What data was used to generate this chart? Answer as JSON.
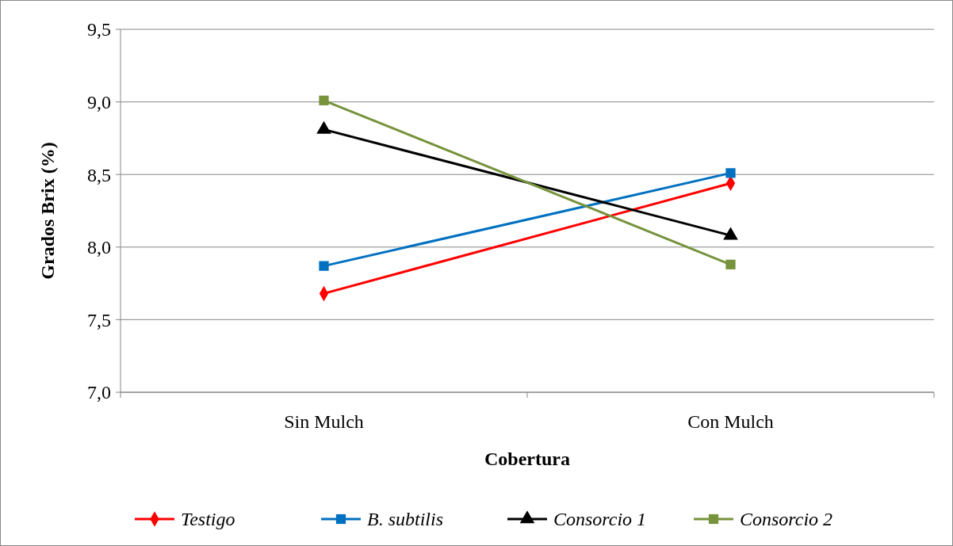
{
  "chart_data": {
    "type": "line",
    "xlabel": "Cobertura",
    "ylabel": "Grados Brix (%)",
    "categories": [
      "Sin Mulch",
      "Con Mulch"
    ],
    "ylim": [
      7.0,
      9.5
    ],
    "yticks": [
      {
        "value": 7.0,
        "label": "7,0"
      },
      {
        "value": 7.5,
        "label": "7,5"
      },
      {
        "value": 8.0,
        "label": "8,0"
      },
      {
        "value": 8.5,
        "label": "8,5"
      },
      {
        "value": 9.0,
        "label": "9,0"
      },
      {
        "value": 9.5,
        "label": "9,5"
      }
    ],
    "grid": "y",
    "legend": "bottom",
    "series": [
      {
        "name": "Testigo",
        "color": "#ff0000",
        "marker": "diamond",
        "values": [
          7.68,
          8.44
        ]
      },
      {
        "name": "B. subtilis",
        "color": "#0070c0",
        "marker": "square",
        "values": [
          7.87,
          8.51
        ]
      },
      {
        "name": "Consorcio 1",
        "color": "#000000",
        "marker": "triangle",
        "values": [
          8.81,
          8.08
        ]
      },
      {
        "name": "Consorcio 2",
        "color": "#77933c",
        "marker": "square",
        "values": [
          9.01,
          7.88
        ]
      }
    ]
  }
}
